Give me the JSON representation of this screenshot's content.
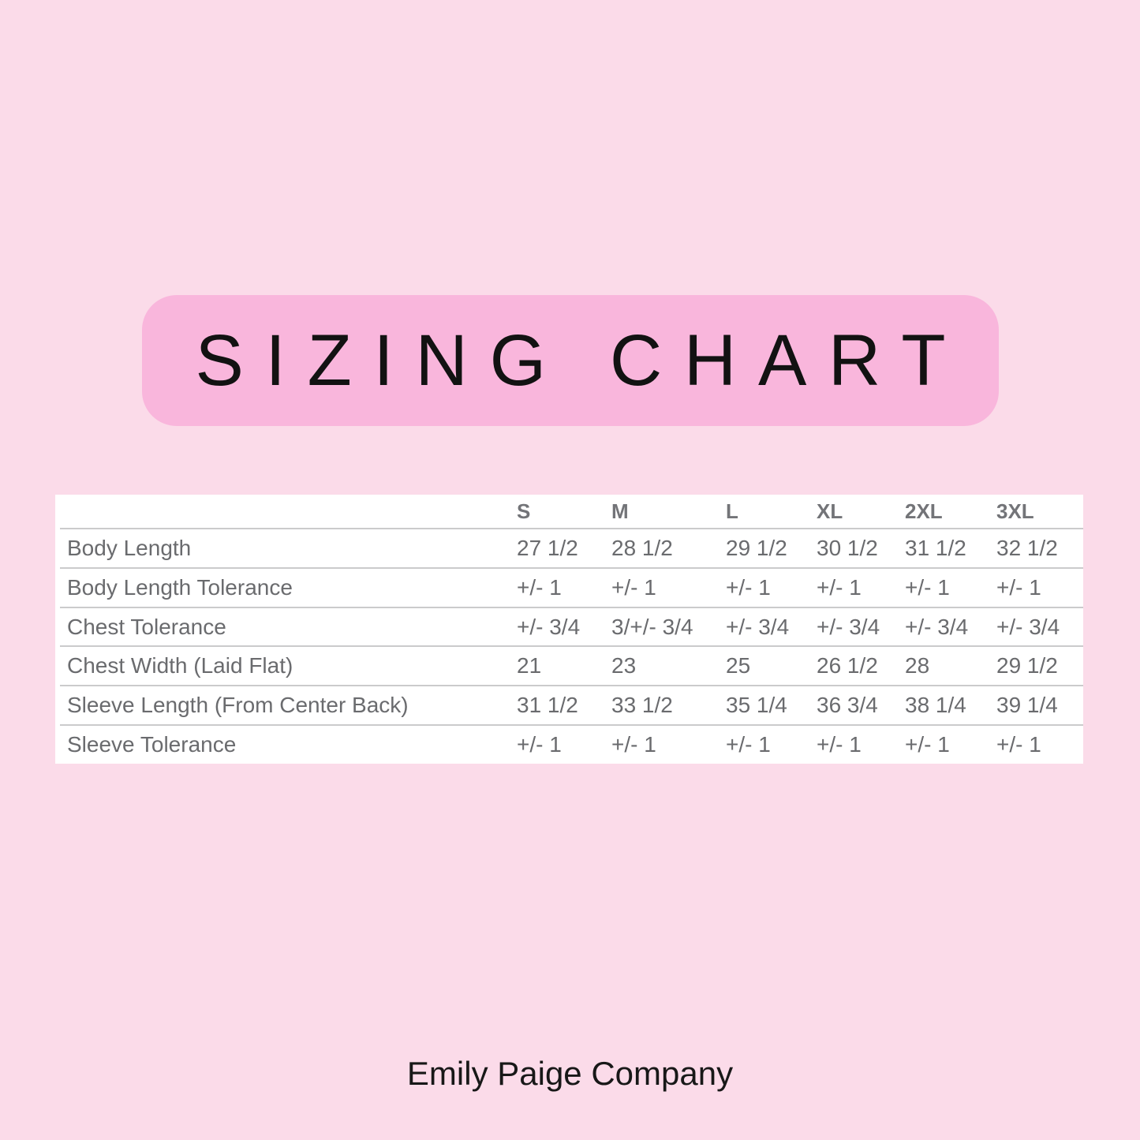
{
  "page": {
    "footer": {
      "brand": "Emily Paige Company"
    },
    "colors": {
      "background": "#FBDBE9",
      "banner": "#F9B6DC",
      "table_background": "#FFFFFF",
      "table_text": "#6A6B6E",
      "row_divider": "#CBCBCC",
      "title_text": "#121212"
    }
  },
  "chart_data": {
    "type": "table",
    "title": "SIZING CHART",
    "columns": [
      "",
      "S",
      "M",
      "L",
      "XL",
      "2XL",
      "3XL"
    ],
    "rows": [
      {
        "label": "Body Length",
        "values": [
          "27 1/2",
          "28 1/2",
          "29 1/2",
          "30 1/2",
          "31 1/2",
          "32 1/2"
        ]
      },
      {
        "label": "Body Length Tolerance",
        "values": [
          "+/- 1",
          "+/- 1",
          "+/- 1",
          "+/- 1",
          "+/- 1",
          "+/- 1"
        ]
      },
      {
        "label": "Chest Tolerance",
        "values": [
          "+/- 3/4",
          "3/+/- 3/4",
          "+/- 3/4",
          "+/- 3/4",
          "+/- 3/4",
          "+/- 3/4"
        ]
      },
      {
        "label": "Chest Width (Laid Flat)",
        "values": [
          "21",
          "23",
          "25",
          "26 1/2",
          "28",
          "29 1/2"
        ]
      },
      {
        "label": "Sleeve Length (From Center Back)",
        "values": [
          "31 1/2",
          "33 1/2",
          "35 1/4",
          "36 3/4",
          "38 1/4",
          "39 1/4"
        ]
      },
      {
        "label": "Sleeve Tolerance",
        "values": [
          "+/- 1",
          "+/- 1",
          "+/- 1",
          "+/- 1",
          "+/- 1",
          "+/- 1"
        ]
      }
    ],
    "layout": {
      "header_row": true,
      "grid": "horizontal-lines-only",
      "legend": "none"
    }
  }
}
